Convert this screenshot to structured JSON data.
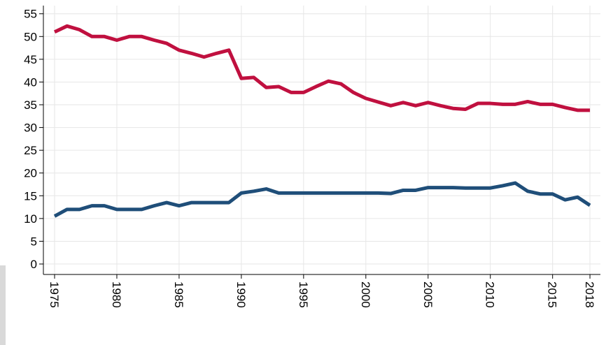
{
  "chart_data": {
    "type": "line",
    "x": [
      1975,
      1976,
      1977,
      1978,
      1979,
      1980,
      1981,
      1982,
      1983,
      1984,
      1985,
      1986,
      1987,
      1988,
      1989,
      1990,
      1991,
      1992,
      1993,
      1994,
      1995,
      1996,
      1997,
      1998,
      1999,
      2000,
      2001,
      2002,
      2003,
      2004,
      2005,
      2006,
      2007,
      2008,
      2009,
      2010,
      2011,
      2012,
      2013,
      2014,
      2015,
      2016,
      2017,
      2018
    ],
    "series": [
      {
        "color": "#c0103f",
        "values": [
          51,
          52.3,
          51.5,
          50,
          50,
          49.2,
          50,
          50,
          49.2,
          48.5,
          47,
          46.3,
          45.5,
          46.3,
          47,
          40.8,
          41,
          38.8,
          39,
          37.7,
          37.7,
          39,
          40.2,
          39.6,
          37.7,
          36.4,
          35.6,
          34.8,
          35.5,
          34.8,
          35.5,
          34.8,
          34.2,
          34,
          35.3,
          35.3,
          35.1,
          35.1,
          35.7,
          35.1,
          35.1,
          34.4,
          33.8,
          33.8
        ]
      },
      {
        "color": "#1f4e79",
        "values": [
          10.5,
          12,
          12,
          12.8,
          12.8,
          12,
          12,
          12,
          12.8,
          13.5,
          12.8,
          13.5,
          13.5,
          13.5,
          13.5,
          15.6,
          16,
          16.5,
          15.6,
          15.6,
          15.6,
          15.6,
          15.6,
          15.6,
          15.6,
          15.6,
          15.6,
          15.5,
          16.2,
          16.2,
          16.8,
          16.8,
          16.8,
          16.7,
          16.7,
          16.7,
          17.2,
          17.8,
          16,
          15.4,
          15.4,
          14.1,
          14.7,
          12.9
        ]
      }
    ],
    "xlim": [
      1974.1,
      2018.84
    ],
    "xticks": [
      1975,
      1980,
      1985,
      1990,
      1995,
      2000,
      2005,
      2010,
      2015,
      2018
    ],
    "ylim": [
      -2.3,
      56.8
    ],
    "yticks": [
      0,
      5,
      10,
      15,
      20,
      25,
      30,
      35,
      40,
      45,
      50,
      55
    ],
    "grid": true
  }
}
